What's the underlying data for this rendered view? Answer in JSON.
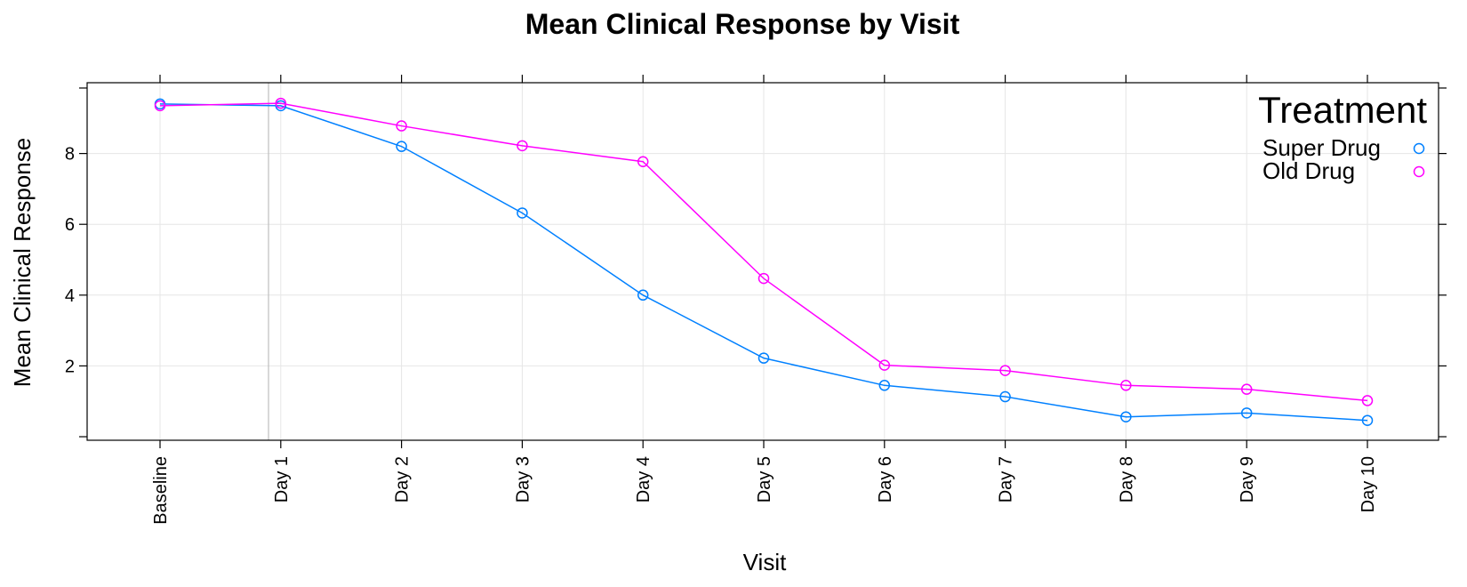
{
  "chart_data": {
    "type": "line",
    "title": "Mean Clinical Response by Visit",
    "xlabel": "Visit",
    "ylabel": "Mean Clinical Response",
    "categories": [
      "Baseline",
      "Day 1",
      "Day 2",
      "Day 3",
      "Day 4",
      "Day 5",
      "Day 6",
      "Day 7",
      "Day 8",
      "Day 9",
      "Day 10"
    ],
    "yticks": [
      2,
      4,
      6,
      8
    ],
    "ylim": [
      -0.1,
      10.0
    ],
    "grid": true,
    "legend": {
      "title": "Treatment",
      "placement": "top-right"
    },
    "series": [
      {
        "name": "Super Drug",
        "color": "#0080ff",
        "values": [
          9.4,
          9.35,
          8.2,
          6.32,
          4.0,
          2.22,
          1.45,
          1.13,
          0.56,
          0.67,
          0.46
        ]
      },
      {
        "name": "Old Drug",
        "color": "#ff00ff",
        "values": [
          9.35,
          9.42,
          8.78,
          8.22,
          7.77,
          4.47,
          2.02,
          1.87,
          1.45,
          1.34,
          1.02
        ]
      }
    ]
  }
}
